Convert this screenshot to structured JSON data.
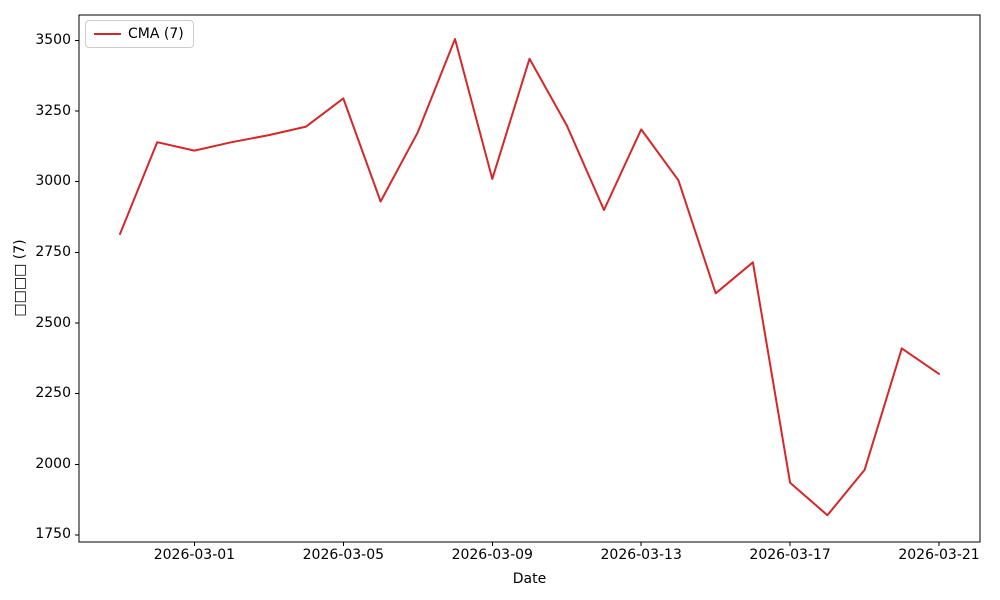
{
  "chart_data": {
    "type": "line",
    "xlabel": "Date",
    "ylabel": "□□□□ (7)",
    "legend_position": "upper left",
    "line_color": "#d62728",
    "grid": false,
    "x": [
      "2026-02-27",
      "2026-02-28",
      "2026-03-01",
      "2026-03-02",
      "2026-03-03",
      "2026-03-04",
      "2026-03-05",
      "2026-03-06",
      "2026-03-07",
      "2026-03-08",
      "2026-03-09",
      "2026-03-10",
      "2026-03-11",
      "2026-03-12",
      "2026-03-13",
      "2026-03-14",
      "2026-03-15",
      "2026-03-16",
      "2026-03-17",
      "2026-03-18",
      "2026-03-19",
      "2026-03-20",
      "2026-03-21"
    ],
    "series": [
      {
        "name": "CMA (7)",
        "values": [
          2815,
          3140,
          3110,
          3140,
          3165,
          3195,
          3295,
          2930,
          3175,
          3505,
          3010,
          3435,
          3200,
          2900,
          3185,
          3005,
          2605,
          2715,
          1935,
          1820,
          1980,
          2410,
          2320
        ]
      }
    ],
    "yticks": [
      1750,
      2000,
      2250,
      2500,
      2750,
      3000,
      3250,
      3500
    ],
    "xtick_labels": [
      "2026-03-01",
      "2026-03-05",
      "2026-03-09",
      "2026-03-13",
      "2026-03-17",
      "2026-03-21"
    ],
    "ylim": [
      1725,
      3590
    ]
  }
}
